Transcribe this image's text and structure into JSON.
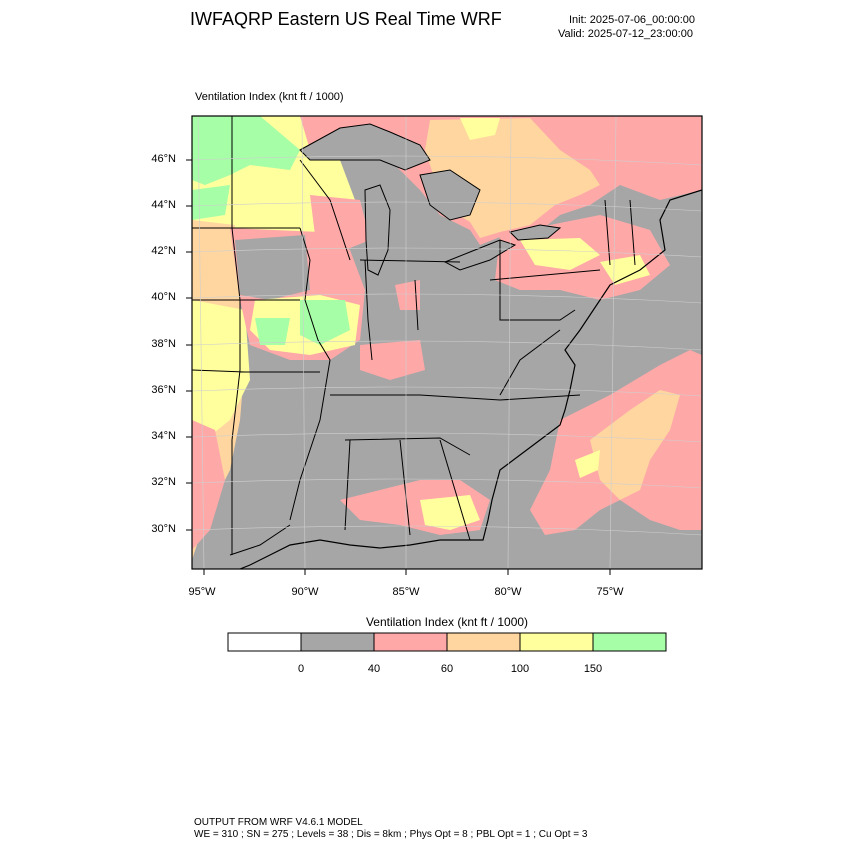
{
  "header": {
    "title": "IWFAQRP Eastern US Real Time WRF",
    "init": "Init: 2025-07-06_00:00:00",
    "valid": "Valid: 2025-07-12_23:00:00"
  },
  "map": {
    "field_label": "Ventilation Index   (knt ft / 1000)",
    "lat_labels": [
      "46°N",
      "44°N",
      "42°N",
      "40°N",
      "38°N",
      "36°N",
      "34°N",
      "32°N",
      "30°N"
    ],
    "lon_labels": [
      "95°W",
      "90°W",
      "85°W",
      "80°W",
      "75°W"
    ],
    "colors": {
      "land_low": "#a6a6a6",
      "ocean": "#a6a6a6",
      "great_lakes": "#a6a6a6",
      "band_40_60": "#ffa8a8",
      "band_60_100": "#ffd6a0",
      "band_100_150": "#ffff9e",
      "band_150_plus": "#a6ffa6"
    }
  },
  "legend": {
    "title": "Ventilation Index  (knt ft / 1000)",
    "swatch_colors": [
      "#ffffff",
      "#a6a6a6",
      "#ffa8a8",
      "#ffd6a0",
      "#ffff9e",
      "#a6ffa6"
    ],
    "ticks": [
      "0",
      "40",
      "60",
      "100",
      "150"
    ]
  },
  "footer": {
    "line1": "OUTPUT FROM WRF V4.6.1 MODEL",
    "line2": "WE = 310 ; SN = 275 ; Levels = 38 ; Dis = 8km ; Phys Opt = 8 ; PBL Opt = 1 ; Cu Opt = 3"
  }
}
